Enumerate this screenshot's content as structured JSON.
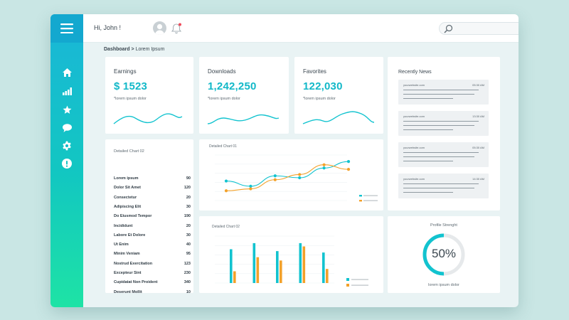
{
  "header": {
    "greeting": "Hi, John !"
  },
  "breadcrumb": {
    "root": "Dashboard",
    "separator": ">",
    "current": "Lorem Ipsum"
  },
  "stats": [
    {
      "label": "Earnings",
      "value": "$ 1523",
      "desc": "*lorem ipsum dolor"
    },
    {
      "label": "Downloads",
      "value": "1,242,250",
      "desc": "*lorem ipsum dolor"
    },
    {
      "label": "Favorites",
      "value": "122,030",
      "desc": "*lorem ipsum dolor"
    }
  ],
  "news": {
    "title": "Recently News",
    "items": [
      {
        "source": "yourwebsite.com",
        "time": "05:30 AM"
      },
      {
        "source": "yourwebsite.com",
        "time": "13:30 AM"
      },
      {
        "source": "yourwebsite.com",
        "time": "05:30 AM"
      },
      {
        "source": "yourwebsite.com",
        "time": "14:30 AM"
      }
    ]
  },
  "detailed_list": {
    "title": "Detailed Chart 02",
    "rows": [
      {
        "label": "Lorem ipsum",
        "value": "90"
      },
      {
        "label": "Dolor Sit Amet",
        "value": "120"
      },
      {
        "label": "Consectetur",
        "value": "20"
      },
      {
        "label": "Adipiscing Elit",
        "value": "30"
      },
      {
        "label": "Do Eiusmod Tempor",
        "value": "190"
      },
      {
        "label": "Incididunt",
        "value": "20"
      },
      {
        "label": "Labore Et Dolore",
        "value": "30"
      },
      {
        "label": "Ut Enim",
        "value": "40"
      },
      {
        "label": "Minim Veniam",
        "value": "95"
      },
      {
        "label": "Nostrud Exercitation",
        "value": "123"
      },
      {
        "label": "Excepteur Sint",
        "value": "230"
      },
      {
        "label": "Cupidatat Non Proident",
        "value": "340"
      },
      {
        "label": "Deserunt Mollit",
        "value": "10"
      }
    ]
  },
  "line_chart": {
    "title": "Detailed Chart 01"
  },
  "bar_chart": {
    "title": "Detailed Chart 02"
  },
  "profile": {
    "title": "Profile Strenght",
    "percent": 50,
    "percent_label": "50%",
    "desc": "lorem ipsum dolor"
  },
  "colors": {
    "accent_teal": "#12c3cf",
    "accent_orange": "#f3a12a",
    "sidebar_top": "#1ab6d8",
    "sidebar_bottom": "#1ee3a5"
  },
  "chart_data": [
    {
      "type": "line",
      "x": [
        1,
        2,
        3,
        4,
        5,
        6
      ],
      "series": [
        {
          "color": "#12c3cf",
          "values": [
            30,
            22,
            38,
            35,
            50,
            60
          ]
        },
        {
          "color": "#f3a12a",
          "values": [
            15,
            18,
            32,
            40,
            55,
            48
          ]
        }
      ],
      "ylim": [
        0,
        70
      ],
      "grid": true,
      "legend": "bottom-right"
    },
    {
      "type": "bar",
      "categories": [
        "1",
        "2",
        "3",
        "4",
        "5"
      ],
      "series": [
        {
          "color": "#12c3cf",
          "values": [
            72,
            85,
            68,
            85,
            65
          ]
        },
        {
          "color": "#f3a12a",
          "values": [
            25,
            55,
            48,
            78,
            30
          ]
        }
      ],
      "ylim": [
        0,
        100
      ],
      "grid": true,
      "legend": "right"
    }
  ]
}
